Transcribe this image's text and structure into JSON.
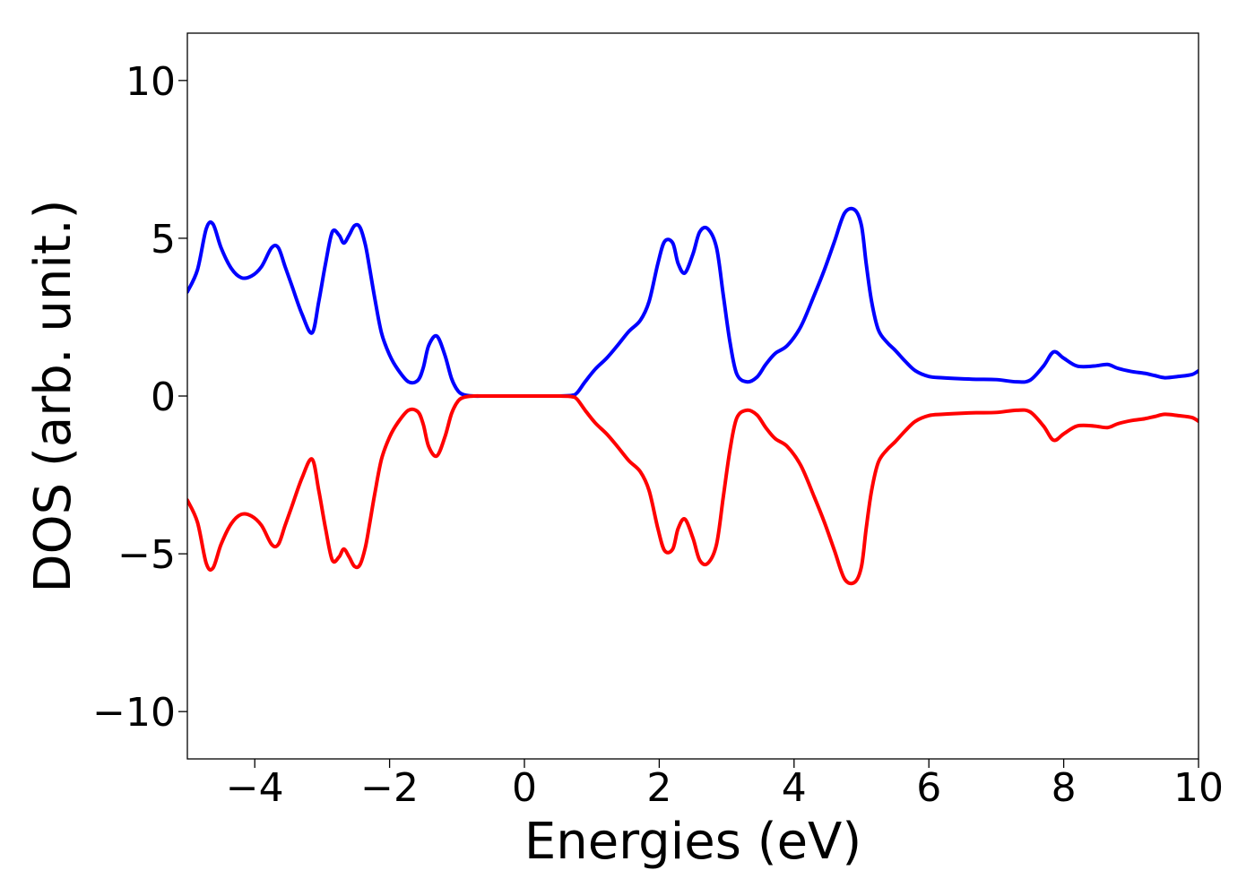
{
  "chart_data": {
    "type": "line",
    "title": "",
    "xlabel": "Energies (eV)",
    "ylabel": "DOS (arb. unit.)",
    "xlim": [
      -5,
      10
    ],
    "ylim": [
      -11.5,
      11.5
    ],
    "grid": false,
    "legend": "none",
    "xticks": [
      {
        "value": -4,
        "label": "−4"
      },
      {
        "value": -2,
        "label": "−2"
      },
      {
        "value": 0,
        "label": "0"
      },
      {
        "value": 2,
        "label": "2"
      },
      {
        "value": 4,
        "label": "4"
      },
      {
        "value": 6,
        "label": "6"
      },
      {
        "value": 8,
        "label": "8"
      },
      {
        "value": 10,
        "label": "10"
      }
    ],
    "yticks": [
      {
        "value": -10,
        "label": "−10"
      },
      {
        "value": -5,
        "label": "−5"
      },
      {
        "value": 0,
        "label": "0"
      },
      {
        "value": 5,
        "label": "5"
      },
      {
        "value": 10,
        "label": "10"
      }
    ],
    "series": [
      {
        "color": "#0000ff",
        "x": [
          -5.0,
          -4.85,
          -4.72,
          -4.62,
          -4.5,
          -4.35,
          -4.2,
          -4.05,
          -3.9,
          -3.75,
          -3.65,
          -3.55,
          -3.45,
          -3.3,
          -3.15,
          -3.05,
          -2.95,
          -2.85,
          -2.75,
          -2.68,
          -2.6,
          -2.52,
          -2.44,
          -2.36,
          -2.3,
          -2.22,
          -2.12,
          -2.0,
          -1.88,
          -1.72,
          -1.58,
          -1.5,
          -1.42,
          -1.3,
          -1.18,
          -1.08,
          -0.98,
          -0.88,
          -0.75,
          -0.6,
          -0.5,
          0.0,
          0.5,
          0.7,
          0.78,
          0.9,
          1.05,
          1.22,
          1.38,
          1.55,
          1.72,
          1.85,
          1.98,
          2.08,
          2.2,
          2.28,
          2.38,
          2.5,
          2.6,
          2.72,
          2.85,
          2.95,
          3.05,
          3.15,
          3.3,
          3.45,
          3.58,
          3.72,
          3.9,
          4.1,
          4.3,
          4.45,
          4.6,
          4.75,
          4.9,
          5.0,
          5.07,
          5.15,
          5.25,
          5.38,
          5.5,
          5.65,
          5.8,
          6.0,
          6.2,
          6.45,
          6.7,
          7.0,
          7.3,
          7.5,
          7.7,
          7.85,
          8.0,
          8.2,
          8.45,
          8.65,
          8.8,
          9.0,
          9.2,
          9.35,
          9.5,
          9.7,
          9.9,
          10.0
        ],
        "y": [
          3.3,
          4.0,
          5.3,
          5.45,
          4.7,
          4.05,
          3.75,
          3.8,
          4.1,
          4.7,
          4.7,
          4.1,
          3.5,
          2.6,
          2.0,
          3.0,
          4.2,
          5.2,
          5.1,
          4.85,
          5.1,
          5.4,
          5.35,
          4.8,
          4.1,
          3.1,
          2.0,
          1.3,
          0.85,
          0.45,
          0.5,
          0.9,
          1.6,
          1.9,
          1.3,
          0.55,
          0.15,
          0.03,
          0.0,
          0.0,
          0.0,
          0.0,
          0.0,
          0.02,
          0.1,
          0.45,
          0.85,
          1.2,
          1.6,
          2.05,
          2.4,
          3.0,
          4.2,
          4.9,
          4.85,
          4.2,
          3.9,
          4.5,
          5.2,
          5.3,
          4.7,
          3.2,
          1.7,
          0.7,
          0.45,
          0.6,
          1.0,
          1.35,
          1.6,
          2.2,
          3.2,
          4.0,
          4.9,
          5.8,
          5.9,
          5.4,
          4.2,
          3.0,
          2.1,
          1.7,
          1.45,
          1.1,
          0.8,
          0.62,
          0.58,
          0.55,
          0.53,
          0.52,
          0.45,
          0.5,
          0.95,
          1.4,
          1.2,
          0.95,
          0.95,
          1.0,
          0.88,
          0.78,
          0.72,
          0.65,
          0.58,
          0.62,
          0.68,
          0.8
        ]
      },
      {
        "color": "#ff0000",
        "x": [
          -5.0,
          -4.85,
          -4.72,
          -4.62,
          -4.5,
          -4.35,
          -4.2,
          -4.05,
          -3.9,
          -3.75,
          -3.65,
          -3.55,
          -3.45,
          -3.3,
          -3.15,
          -3.05,
          -2.95,
          -2.85,
          -2.75,
          -2.68,
          -2.6,
          -2.52,
          -2.44,
          -2.36,
          -2.3,
          -2.22,
          -2.12,
          -2.0,
          -1.88,
          -1.72,
          -1.58,
          -1.5,
          -1.42,
          -1.3,
          -1.18,
          -1.08,
          -0.98,
          -0.88,
          -0.75,
          -0.6,
          -0.5,
          0.0,
          0.5,
          0.7,
          0.78,
          0.9,
          1.05,
          1.22,
          1.38,
          1.55,
          1.72,
          1.85,
          1.98,
          2.08,
          2.2,
          2.28,
          2.38,
          2.5,
          2.6,
          2.72,
          2.85,
          2.95,
          3.05,
          3.15,
          3.3,
          3.45,
          3.58,
          3.72,
          3.9,
          4.1,
          4.3,
          4.45,
          4.6,
          4.75,
          4.9,
          5.0,
          5.07,
          5.15,
          5.25,
          5.38,
          5.5,
          5.65,
          5.8,
          6.0,
          6.2,
          6.45,
          6.7,
          7.0,
          7.3,
          7.5,
          7.7,
          7.85,
          8.0,
          8.2,
          8.45,
          8.65,
          8.8,
          9.0,
          9.2,
          9.35,
          9.5,
          9.7,
          9.9,
          10.0
        ],
        "y": [
          -3.3,
          -4.0,
          -5.3,
          -5.45,
          -4.7,
          -4.05,
          -3.75,
          -3.8,
          -4.1,
          -4.7,
          -4.7,
          -4.1,
          -3.5,
          -2.6,
          -2.0,
          -3.0,
          -4.2,
          -5.2,
          -5.1,
          -4.85,
          -5.1,
          -5.4,
          -5.35,
          -4.8,
          -4.1,
          -3.1,
          -2.0,
          -1.3,
          -0.85,
          -0.45,
          -0.5,
          -0.9,
          -1.6,
          -1.9,
          -1.3,
          -0.55,
          -0.15,
          -0.03,
          0.0,
          0.0,
          0.0,
          0.0,
          0.0,
          -0.02,
          -0.1,
          -0.45,
          -0.85,
          -1.2,
          -1.6,
          -2.05,
          -2.4,
          -3.0,
          -4.2,
          -4.9,
          -4.85,
          -4.2,
          -3.9,
          -4.5,
          -5.2,
          -5.3,
          -4.7,
          -3.2,
          -1.7,
          -0.7,
          -0.45,
          -0.6,
          -1.0,
          -1.35,
          -1.6,
          -2.2,
          -3.2,
          -4.0,
          -4.9,
          -5.8,
          -5.9,
          -5.4,
          -4.2,
          -3.0,
          -2.1,
          -1.7,
          -1.45,
          -1.1,
          -0.8,
          -0.62,
          -0.58,
          -0.55,
          -0.53,
          -0.52,
          -0.45,
          -0.5,
          -0.95,
          -1.4,
          -1.2,
          -0.95,
          -0.95,
          -1.0,
          -0.88,
          -0.78,
          -0.72,
          -0.65,
          -0.58,
          -0.62,
          -0.68,
          -0.8
        ]
      }
    ]
  }
}
